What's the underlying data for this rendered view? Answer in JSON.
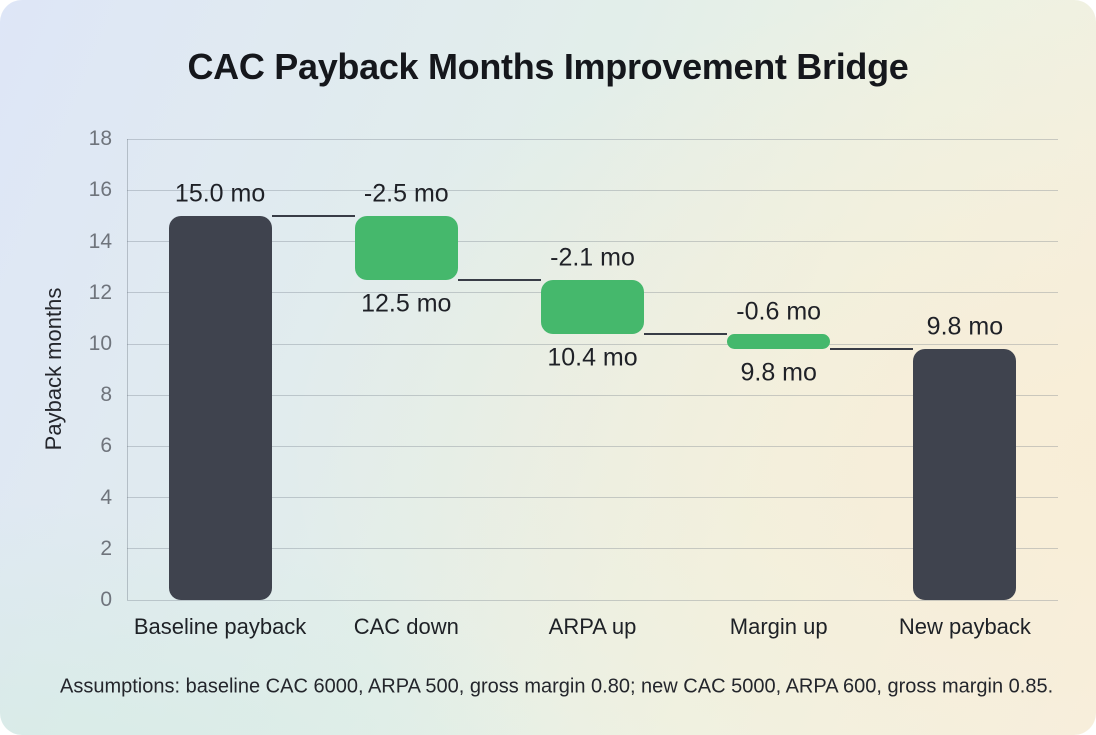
{
  "title": "CAC Payback Months Improvement Bridge",
  "footer": "Assumptions: baseline CAC 6000, ARPA 500, gross margin 0.80; new CAC 5000, ARPA 600, gross margin 0.85.",
  "chart_data": {
    "type": "bar",
    "subtype": "waterfall-bridge",
    "title": "CAC Payback Months Improvement Bridge",
    "xlabel": "",
    "ylabel": "Payback months",
    "ylim": [
      0,
      18
    ],
    "ytick_step": 2,
    "ytick_labels": [
      "0",
      "2",
      "4",
      "6",
      "8",
      "10",
      "12",
      "14",
      "16",
      "18"
    ],
    "grid": true,
    "legend": "none",
    "categories": [
      "Baseline payback",
      "CAC down",
      "ARPA up",
      "Margin up",
      "New payback"
    ],
    "bars": [
      {
        "category": "Baseline payback",
        "start": 0,
        "end": 15.0,
        "delta": 15.0,
        "type": "total",
        "top_label": "15.0 mo",
        "bottom_label": ""
      },
      {
        "category": "CAC down",
        "start": 15.0,
        "end": 12.5,
        "delta": -2.5,
        "type": "decrease",
        "top_label": "-2.5 mo",
        "bottom_label": "12.5 mo"
      },
      {
        "category": "ARPA up",
        "start": 12.5,
        "end": 10.4,
        "delta": -2.1,
        "type": "decrease",
        "top_label": "-2.1 mo",
        "bottom_label": "10.4 mo"
      },
      {
        "category": "Margin up",
        "start": 10.4,
        "end": 9.8,
        "delta": -0.6,
        "type": "decrease",
        "top_label": "-0.6 mo",
        "bottom_label": "9.8 mo"
      },
      {
        "category": "New payback",
        "start": 0,
        "end": 9.8,
        "delta": 9.8,
        "type": "total",
        "top_label": "9.8 mo",
        "bottom_label": ""
      }
    ],
    "colors": {
      "total_bar": "#3f434e",
      "decrease_bar": "#45b86c",
      "connector": "#383c46",
      "gridline": "rgba(108,118,130,0.32)",
      "title_text": "#15171c",
      "label_text": "#1f2127",
      "tick_text": "#6f747c",
      "background_stops": [
        "#dee6f7",
        "#e2eeea",
        "#edf2e3",
        "#f6efdf"
      ]
    }
  }
}
